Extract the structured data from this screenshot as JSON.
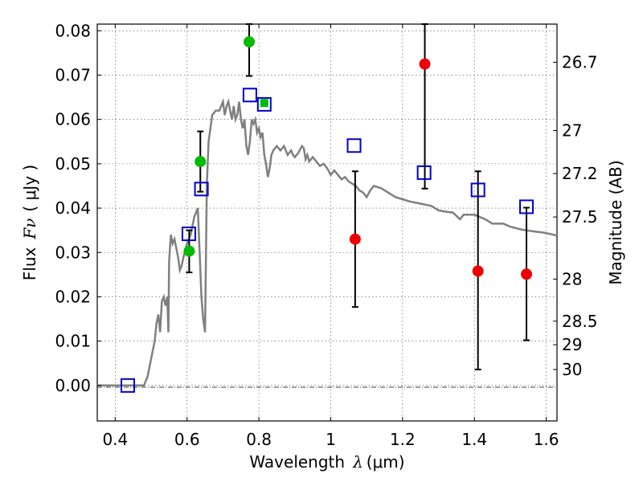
{
  "chart_data": {
    "type": "scatter",
    "xlabel_prefix": "Wavelength",
    "xlabel_symbol": "λ",
    "xlabel_unit": "(μm)",
    "ylabel_prefix": "Flux",
    "ylabel_symbol": "Fν",
    "ylabel_unit": "( μJy )",
    "y2label": "Magnitude (AB)",
    "xlim": [
      0.35,
      1.63
    ],
    "ylim": [
      -0.008,
      0.0815
    ],
    "grid": true,
    "x_ticks": [
      {
        "v": 0.4,
        "label": "0.4"
      },
      {
        "v": 0.6,
        "label": "0.6"
      },
      {
        "v": 0.8,
        "label": "0.8"
      },
      {
        "v": 1.0,
        "label": "1"
      },
      {
        "v": 1.2,
        "label": "1.2"
      },
      {
        "v": 1.4,
        "label": "1.4"
      },
      {
        "v": 1.6,
        "label": "1.6"
      }
    ],
    "y_ticks": [
      {
        "v": 0.0,
        "label": "0.00"
      },
      {
        "v": 0.01,
        "label": "0.01"
      },
      {
        "v": 0.02,
        "label": "0.02"
      },
      {
        "v": 0.03,
        "label": "0.03"
      },
      {
        "v": 0.04,
        "label": "0.04"
      },
      {
        "v": 0.05,
        "label": "0.05"
      },
      {
        "v": 0.06,
        "label": "0.06"
      },
      {
        "v": 0.07,
        "label": "0.07"
      },
      {
        "v": 0.08,
        "label": "0.08"
      }
    ],
    "mag_ticks": [
      {
        "v": 0.0729,
        "label": "26.7"
      },
      {
        "v": 0.0575,
        "label": "27"
      },
      {
        "v": 0.0478,
        "label": "27.2"
      },
      {
        "v": 0.038,
        "label": "27.5"
      },
      {
        "v": 0.024,
        "label": "28"
      },
      {
        "v": 0.0145,
        "label": "28.5"
      },
      {
        "v": 0.0092,
        "label": "29"
      },
      {
        "v": 0.0036,
        "label": "30"
      }
    ],
    "colors": {
      "sed": "#808080",
      "green": "#00bb00",
      "red": "#ee0000",
      "model": "#0000cc",
      "errorbar": "#000000"
    },
    "sed_curve": [
      [
        0.35,
        0.0
      ],
      [
        0.48,
        0.0
      ],
      [
        0.49,
        0.002
      ],
      [
        0.5,
        0.006
      ],
      [
        0.51,
        0.01
      ],
      [
        0.515,
        0.014
      ],
      [
        0.52,
        0.016
      ],
      [
        0.525,
        0.012
      ],
      [
        0.53,
        0.019
      ],
      [
        0.535,
        0.02
      ],
      [
        0.54,
        0.018
      ],
      [
        0.545,
        0.02
      ],
      [
        0.548,
        0.012
      ],
      [
        0.55,
        0.028
      ],
      [
        0.555,
        0.034
      ],
      [
        0.56,
        0.032
      ],
      [
        0.565,
        0.033
      ],
      [
        0.57,
        0.031
      ],
      [
        0.575,
        0.029
      ],
      [
        0.58,
        0.026
      ],
      [
        0.585,
        0.027
      ],
      [
        0.59,
        0.029
      ],
      [
        0.6,
        0.032
      ],
      [
        0.61,
        0.034
      ],
      [
        0.62,
        0.038
      ],
      [
        0.63,
        0.04
      ],
      [
        0.635,
        0.03
      ],
      [
        0.64,
        0.02
      ],
      [
        0.645,
        0.015
      ],
      [
        0.65,
        0.012
      ],
      [
        0.655,
        0.045
      ],
      [
        0.66,
        0.055
      ],
      [
        0.665,
        0.058
      ],
      [
        0.67,
        0.061
      ],
      [
        0.68,
        0.062
      ],
      [
        0.69,
        0.062
      ],
      [
        0.7,
        0.064
      ],
      [
        0.705,
        0.061
      ],
      [
        0.71,
        0.063
      ],
      [
        0.715,
        0.064
      ],
      [
        0.72,
        0.062
      ],
      [
        0.725,
        0.06
      ],
      [
        0.73,
        0.063
      ],
      [
        0.735,
        0.06
      ],
      [
        0.74,
        0.061
      ],
      [
        0.745,
        0.064
      ],
      [
        0.75,
        0.06
      ],
      [
        0.755,
        0.058
      ],
      [
        0.76,
        0.06
      ],
      [
        0.765,
        0.054
      ],
      [
        0.77,
        0.052
      ],
      [
        0.775,
        0.055
      ],
      [
        0.78,
        0.06
      ],
      [
        0.785,
        0.059
      ],
      [
        0.79,
        0.06
      ],
      [
        0.795,
        0.057
      ],
      [
        0.8,
        0.058
      ],
      [
        0.805,
        0.056
      ],
      [
        0.81,
        0.057
      ],
      [
        0.815,
        0.052
      ],
      [
        0.82,
        0.05
      ],
      [
        0.825,
        0.047
      ],
      [
        0.83,
        0.049
      ],
      [
        0.835,
        0.052
      ],
      [
        0.84,
        0.053
      ],
      [
        0.85,
        0.054
      ],
      [
        0.86,
        0.053
      ],
      [
        0.87,
        0.054
      ],
      [
        0.875,
        0.053
      ],
      [
        0.88,
        0.052
      ],
      [
        0.89,
        0.053
      ],
      [
        0.895,
        0.052
      ],
      [
        0.9,
        0.0515
      ],
      [
        0.91,
        0.0525
      ],
      [
        0.92,
        0.054
      ],
      [
        0.925,
        0.0535
      ],
      [
        0.93,
        0.051
      ],
      [
        0.935,
        0.052
      ],
      [
        0.94,
        0.0505
      ],
      [
        0.95,
        0.0515
      ],
      [
        0.96,
        0.0505
      ],
      [
        0.97,
        0.0495
      ],
      [
        0.98,
        0.05
      ],
      [
        0.99,
        0.049
      ],
      [
        1.0,
        0.0475
      ],
      [
        1.01,
        0.0485
      ],
      [
        1.02,
        0.0475
      ],
      [
        1.03,
        0.0465
      ],
      [
        1.04,
        0.047
      ],
      [
        1.05,
        0.046
      ],
      [
        1.06,
        0.0455
      ],
      [
        1.07,
        0.045
      ],
      [
        1.08,
        0.044
      ],
      [
        1.09,
        0.0435
      ],
      [
        1.1,
        0.0425
      ],
      [
        1.11,
        0.044
      ],
      [
        1.12,
        0.045
      ],
      [
        1.14,
        0.0445
      ],
      [
        1.16,
        0.0435
      ],
      [
        1.18,
        0.0425
      ],
      [
        1.2,
        0.042
      ],
      [
        1.22,
        0.0415
      ],
      [
        1.25,
        0.041
      ],
      [
        1.28,
        0.0405
      ],
      [
        1.3,
        0.0395
      ],
      [
        1.32,
        0.0392
      ],
      [
        1.34,
        0.039
      ],
      [
        1.36,
        0.0375
      ],
      [
        1.37,
        0.0385
      ],
      [
        1.4,
        0.0385
      ],
      [
        1.43,
        0.0375
      ],
      [
        1.45,
        0.0365
      ],
      [
        1.48,
        0.0365
      ],
      [
        1.5,
        0.0358
      ],
      [
        1.53,
        0.0352
      ],
      [
        1.56,
        0.0348
      ],
      [
        1.59,
        0.0345
      ],
      [
        1.61,
        0.0342
      ],
      [
        1.63,
        0.0338
      ]
    ],
    "model_points": [
      {
        "x": 0.435,
        "y": 0.0
      },
      {
        "x": 0.605,
        "y": 0.0342
      },
      {
        "x": 0.64,
        "y": 0.0443
      },
      {
        "x": 0.775,
        "y": 0.0655
      },
      {
        "x": 0.815,
        "y": 0.0634
      },
      {
        "x": 1.065,
        "y": 0.0541
      },
      {
        "x": 1.26,
        "y": 0.048
      },
      {
        "x": 1.41,
        "y": 0.0441
      },
      {
        "x": 1.545,
        "y": 0.0403
      }
    ],
    "detections": [
      {
        "x": 0.606,
        "y": 0.0303,
        "yerr_low": 0.0255,
        "yerr_high": 0.035,
        "color": "green"
      },
      {
        "x": 0.637,
        "y": 0.0505,
        "yerr_low": 0.0437,
        "yerr_high": 0.0573,
        "color": "green"
      },
      {
        "x": 0.773,
        "y": 0.0775,
        "yerr_low": 0.0698,
        "yerr_high": 0.0815,
        "color": "green"
      },
      {
        "x": 0.815,
        "y": 0.0637,
        "color": "green"
      },
      {
        "x": 1.068,
        "y": 0.033,
        "yerr_low": 0.0177,
        "yerr_high": 0.0483,
        "color": "red"
      },
      {
        "x": 1.262,
        "y": 0.0725,
        "yerr_low": 0.0444,
        "yerr_high": 0.0815,
        "color": "red"
      },
      {
        "x": 1.41,
        "y": 0.0258,
        "yerr_low": 0.0036,
        "yerr_high": 0.0483,
        "color": "red"
      },
      {
        "x": 1.545,
        "y": 0.0251,
        "yerr_low": 0.0102,
        "yerr_high": 0.0401,
        "color": "red"
      }
    ]
  }
}
